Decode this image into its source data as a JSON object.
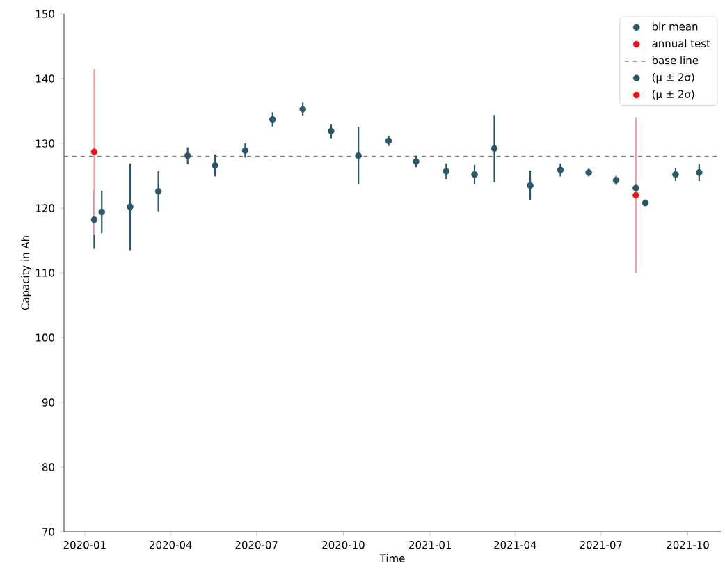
{
  "chart_data": {
    "type": "scatter",
    "xlabel": "Time",
    "ylabel": "Capacity in Ah",
    "xlim": [
      "2019-12-10",
      "2021-11-05"
    ],
    "ylim": [
      70,
      150
    ],
    "xticks": [
      "2020-01",
      "2020-04",
      "2020-07",
      "2020-10",
      "2021-01",
      "2021-04",
      "2021-07",
      "2021-10"
    ],
    "yticks": [
      70,
      80,
      90,
      100,
      110,
      120,
      130,
      140,
      150
    ],
    "grid": false,
    "legend": "top right",
    "marker": "circle",
    "series": [
      {
        "name": "blr mean",
        "color": "#2a5869",
        "x": [
          "2020-01-11",
          "2020-01-19",
          "2020-02-18",
          "2020-03-19",
          "2020-04-19",
          "2020-05-18",
          "2020-06-19",
          "2020-07-18",
          "2020-08-19",
          "2020-09-18",
          "2020-10-17",
          "2020-11-18",
          "2020-12-17",
          "2021-01-18",
          "2021-02-17",
          "2021-03-10",
          "2021-04-17",
          "2021-05-19",
          "2021-06-18",
          "2021-07-17",
          "2021-08-07",
          "2021-08-17",
          "2021-09-18",
          "2021-10-13"
        ],
        "values": [
          118.2,
          119.4,
          120.2,
          122.6,
          128.1,
          126.6,
          128.9,
          133.7,
          135.3,
          131.9,
          128.1,
          130.4,
          127.2,
          125.7,
          125.2,
          129.2,
          123.5,
          125.9,
          125.5,
          124.3,
          123.1,
          120.8,
          125.2,
          125.5
        ],
        "errors": [
          4.5,
          3.3,
          6.7,
          3.1,
          1.3,
          1.7,
          1.1,
          1.1,
          1.0,
          1.1,
          4.4,
          0.8,
          0.9,
          1.2,
          1.5,
          5.2,
          2.3,
          1.0,
          0.6,
          0.7,
          0.7,
          0.5,
          1.0,
          1.3
        ]
      },
      {
        "name": "annual test",
        "color": "#e8141a",
        "x": [
          "2020-01-11",
          "2021-08-07"
        ],
        "values": [
          128.7,
          122.0
        ],
        "errors": [
          12.8,
          12.0
        ]
      }
    ],
    "annotations": [
      "(μ ± 2σ)",
      "(μ ± 2σ)"
    ],
    "ref_lines": [
      {
        "axis": "y",
        "value": 128.0,
        "label": "base line",
        "color": "#808080",
        "line_style": "dashed"
      }
    ]
  }
}
